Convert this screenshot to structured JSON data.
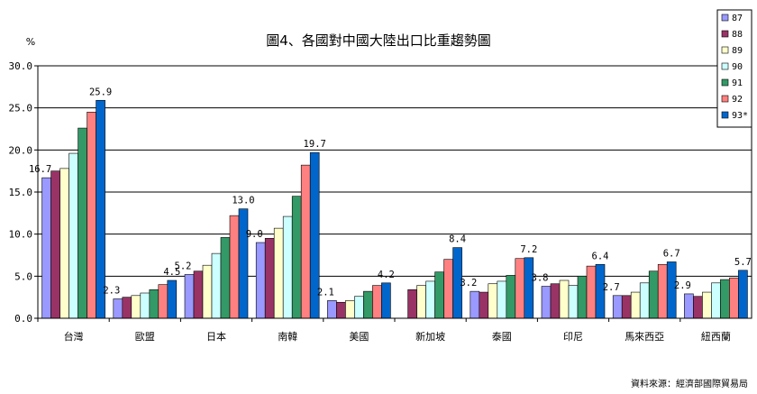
{
  "chart_data": {
    "type": "bar",
    "title": "圖4、各國對中國大陸出口比重趨勢圖",
    "ylabel": "%",
    "source": "資料來源：經濟部國際貿易局",
    "ylim": [
      0,
      30
    ],
    "yticks": [
      "0.0",
      "5.0",
      "10.0",
      "15.0",
      "20.0",
      "25.0",
      "30.0"
    ],
    "grid": true,
    "legend_position": "top-right",
    "categories": [
      "台灣",
      "歐盟",
      "日本",
      "南韓",
      "美國",
      "新加坡",
      "泰國",
      "印尼",
      "馬來西亞",
      "紐西蘭"
    ],
    "series": [
      {
        "name": "87",
        "color": "#9999ff",
        "values": [
          16.7,
          2.3,
          5.2,
          9.0,
          2.1,
          0.0,
          3.2,
          3.8,
          2.7,
          2.9
        ]
      },
      {
        "name": "88",
        "color": "#993366",
        "values": [
          17.5,
          2.5,
          5.6,
          9.5,
          1.9,
          3.4,
          3.1,
          4.1,
          2.7,
          2.6
        ]
      },
      {
        "name": "89",
        "color": "#ffffcc",
        "values": [
          17.8,
          2.7,
          6.3,
          10.7,
          2.1,
          3.9,
          4.1,
          4.5,
          3.1,
          3.1
        ]
      },
      {
        "name": "90",
        "color": "#ccffff",
        "values": [
          19.6,
          3.0,
          7.7,
          12.1,
          2.6,
          4.4,
          4.4,
          3.9,
          4.2,
          4.2
        ]
      },
      {
        "name": "91",
        "color": "#339966",
        "values": [
          22.6,
          3.4,
          9.6,
          14.5,
          3.2,
          5.5,
          5.1,
          5.0,
          5.6,
          4.6
        ]
      },
      {
        "name": "92",
        "color": "#ff8080",
        "values": [
          24.5,
          4.0,
          12.2,
          18.2,
          3.9,
          7.0,
          7.1,
          6.2,
          6.4,
          4.8
        ]
      },
      {
        "name": "93*",
        "color": "#0066cc",
        "values": [
          25.9,
          4.5,
          13.0,
          19.7,
          4.2,
          8.4,
          7.2,
          6.4,
          6.7,
          5.7
        ]
      }
    ],
    "data_labels": [
      {
        "category_index": 0,
        "series_index": 0,
        "text": "16.7"
      },
      {
        "category_index": 0,
        "series_index": 6,
        "text": "25.9"
      },
      {
        "category_index": 1,
        "series_index": 0,
        "text": "2.3"
      },
      {
        "category_index": 1,
        "series_index": 6,
        "text": "4.5"
      },
      {
        "category_index": 2,
        "series_index": 0,
        "text": "5.2"
      },
      {
        "category_index": 2,
        "series_index": 6,
        "text": "13.0"
      },
      {
        "category_index": 3,
        "series_index": 0,
        "text": "9.0"
      },
      {
        "category_index": 3,
        "series_index": 6,
        "text": "19.7"
      },
      {
        "category_index": 4,
        "series_index": 0,
        "text": "2.1"
      },
      {
        "category_index": 4,
        "series_index": 6,
        "text": "4.2"
      },
      {
        "category_index": 5,
        "series_index": 6,
        "text": "8.4"
      },
      {
        "category_index": 6,
        "series_index": 0,
        "text": "3.2"
      },
      {
        "category_index": 6,
        "series_index": 6,
        "text": "7.2"
      },
      {
        "category_index": 7,
        "series_index": 0,
        "text": "3.8"
      },
      {
        "category_index": 7,
        "series_index": 6,
        "text": "6.4"
      },
      {
        "category_index": 8,
        "series_index": 0,
        "text": "2.7"
      },
      {
        "category_index": 8,
        "series_index": 6,
        "text": "6.7"
      },
      {
        "category_index": 9,
        "series_index": 0,
        "text": "2.9"
      },
      {
        "category_index": 9,
        "series_index": 6,
        "text": "5.7"
      }
    ]
  }
}
